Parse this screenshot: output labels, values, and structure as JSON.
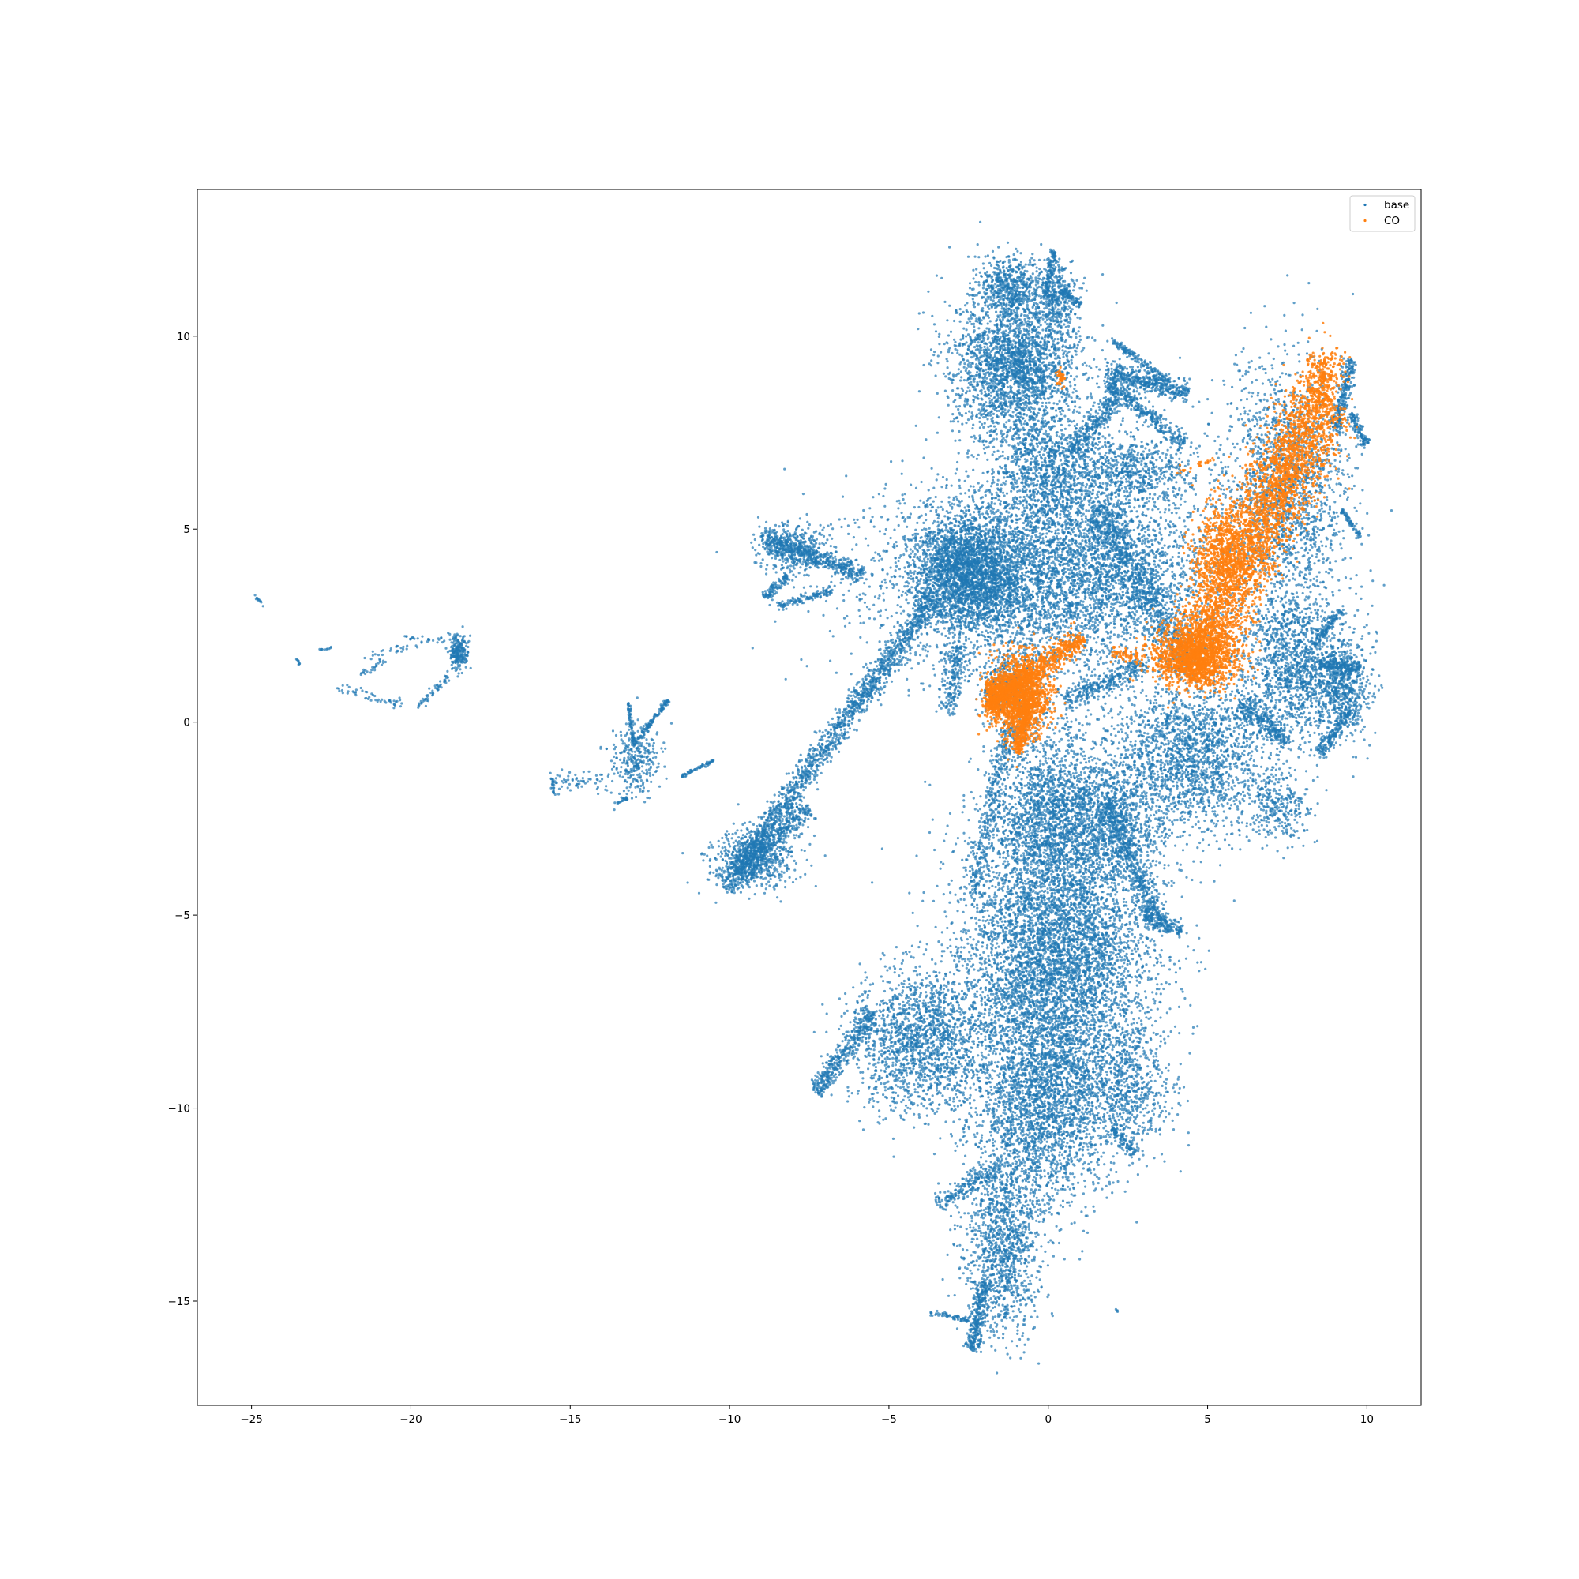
{
  "chart_data": {
    "type": "scatter",
    "title": "",
    "xlabel": "",
    "ylabel": "",
    "xlim": [
      -26.7,
      11.7
    ],
    "ylim": [
      -17.7,
      13.8
    ],
    "xticks": [
      -25,
      -20,
      -15,
      -10,
      -5,
      0,
      5,
      10
    ],
    "yticks": [
      -15,
      -10,
      -5,
      0,
      5,
      10
    ],
    "xtick_labels": [
      "−25",
      "−20",
      "−15",
      "−10",
      "−5",
      "0",
      "5",
      "10"
    ],
    "ytick_labels": [
      "−15",
      "−10",
      "−5",
      "0",
      "5",
      "10"
    ],
    "grid": false,
    "legend_position": "upper right",
    "series": [
      {
        "name": "base",
        "color": "#1f77b4",
        "clusters": [
          {
            "type": "blob",
            "cx": 0.2,
            "cy": 3.8,
            "sx": 3.5,
            "sy": 1.7,
            "n": 5200
          },
          {
            "type": "blob",
            "cx": -2.5,
            "cy": 3.9,
            "sx": 1.1,
            "sy": 1.0,
            "n": 2400
          },
          {
            "type": "blob",
            "cx": -1.0,
            "cy": 9.2,
            "sx": 1.3,
            "sy": 1.3,
            "n": 2600
          },
          {
            "type": "blob",
            "cx": -1.2,
            "cy": 11.3,
            "sx": 0.7,
            "sy": 0.5,
            "n": 500
          },
          {
            "type": "blob",
            "cx": 0.3,
            "cy": 11.0,
            "sx": 0.4,
            "sy": 0.6,
            "n": 300
          },
          {
            "type": "blob",
            "cx": 0.0,
            "cy": 6.5,
            "sx": 1.1,
            "sy": 1.0,
            "n": 900
          },
          {
            "type": "blob",
            "cx": 7.5,
            "cy": 6.0,
            "sx": 1.3,
            "sy": 2.2,
            "n": 1800
          },
          {
            "type": "blob",
            "cx": 7.8,
            "cy": 1.5,
            "sx": 1.2,
            "sy": 1.2,
            "n": 1400
          },
          {
            "type": "blob",
            "cx": 4.5,
            "cy": -0.8,
            "sx": 1.6,
            "sy": 1.3,
            "n": 1900
          },
          {
            "type": "blob",
            "cx": 9.2,
            "cy": 0.8,
            "sx": 0.6,
            "sy": 0.8,
            "n": 500
          },
          {
            "type": "blob",
            "cx": 0.3,
            "cy": -6.2,
            "sx": 2.0,
            "sy": 2.4,
            "n": 5600
          },
          {
            "type": "blob",
            "cx": 0.0,
            "cy": -2.5,
            "sx": 1.2,
            "sy": 1.6,
            "n": 1700
          },
          {
            "type": "blob",
            "cx": 2.0,
            "cy": -2.5,
            "sx": 1.3,
            "sy": 1.2,
            "n": 1100
          },
          {
            "type": "blob",
            "cx": -0.2,
            "cy": -10.0,
            "sx": 1.4,
            "sy": 1.7,
            "n": 2200
          },
          {
            "type": "blob",
            "cx": -1.4,
            "cy": -13.6,
            "sx": 0.8,
            "sy": 1.6,
            "n": 1200
          },
          {
            "type": "blob",
            "cx": -4.0,
            "cy": -8.2,
            "sx": 1.4,
            "sy": 1.2,
            "n": 1700
          },
          {
            "type": "blob",
            "cx": 2.5,
            "cy": -9.5,
            "sx": 0.9,
            "sy": 1.0,
            "n": 600
          },
          {
            "type": "blob",
            "cx": -1.2,
            "cy": 0.9,
            "sx": 0.6,
            "sy": 0.6,
            "n": 400
          },
          {
            "type": "blob",
            "cx": 7.2,
            "cy": -2.2,
            "sx": 0.7,
            "sy": 0.6,
            "n": 300
          },
          {
            "type": "blob",
            "cx": 2.5,
            "cy": 6.5,
            "sx": 1.5,
            "sy": 0.6,
            "n": 700
          },
          {
            "type": "blob",
            "cx": -8.0,
            "cy": 4.5,
            "sx": 0.7,
            "sy": 0.4,
            "n": 350
          },
          {
            "type": "blob",
            "cx": -9.2,
            "cy": -3.6,
            "sx": 0.9,
            "sy": 0.5,
            "n": 600
          },
          {
            "type": "blob",
            "cx": -13.0,
            "cy": -1.0,
            "sx": 0.5,
            "sy": 0.6,
            "n": 300
          },
          {
            "type": "blob",
            "cx": -18.5,
            "cy": 1.8,
            "sx": 0.2,
            "sy": 0.3,
            "n": 220
          },
          {
            "type": "line",
            "x1": -3.5,
            "y1": 3.3,
            "x2": -9.8,
            "y2": -3.8,
            "w": 0.35,
            "n": 1500
          },
          {
            "type": "line",
            "x1": -10.2,
            "y1": -4.3,
            "x2": -7.5,
            "y2": -2.2,
            "w": 0.35,
            "n": 500
          },
          {
            "type": "line",
            "x1": -5.8,
            "y1": 3.8,
            "x2": -9.0,
            "y2": 4.8,
            "w": 0.3,
            "n": 500
          },
          {
            "type": "line",
            "x1": -6.8,
            "y1": 3.4,
            "x2": -8.5,
            "y2": 3.0,
            "w": 0.12,
            "n": 120
          },
          {
            "type": "line",
            "x1": -8.2,
            "y1": 3.8,
            "x2": -8.9,
            "y2": 3.2,
            "w": 0.15,
            "n": 100
          },
          {
            "type": "line",
            "x1": 0.8,
            "y1": 7.0,
            "x2": 2.2,
            "y2": 8.5,
            "w": 0.3,
            "n": 300
          },
          {
            "type": "line",
            "x1": 1.8,
            "y1": 9.1,
            "x2": 4.4,
            "y2": 8.5,
            "w": 0.28,
            "n": 450
          },
          {
            "type": "line",
            "x1": 1.9,
            "y1": 8.8,
            "x2": 4.3,
            "y2": 7.2,
            "w": 0.22,
            "n": 350
          },
          {
            "type": "line",
            "x1": 2.0,
            "y1": 9.9,
            "x2": 3.8,
            "y2": 8.8,
            "w": 0.12,
            "n": 150
          },
          {
            "type": "line",
            "x1": -0.1,
            "y1": 11.0,
            "x2": 0.2,
            "y2": 12.2,
            "w": 0.1,
            "n": 120
          },
          {
            "type": "line",
            "x1": 0.4,
            "y1": 11.2,
            "x2": 1.0,
            "y2": 10.8,
            "w": 0.1,
            "n": 80
          },
          {
            "type": "line",
            "x1": -1.5,
            "y1": -11.5,
            "x2": -3.5,
            "y2": -12.5,
            "w": 0.25,
            "n": 200
          },
          {
            "type": "line",
            "x1": -2.0,
            "y1": -14.5,
            "x2": -2.4,
            "y2": -16.3,
            "w": 0.25,
            "n": 300
          },
          {
            "type": "line",
            "x1": -2.5,
            "y1": -15.5,
            "x2": -3.7,
            "y2": -15.3,
            "w": 0.08,
            "n": 60
          },
          {
            "type": "line",
            "x1": -5.5,
            "y1": -7.5,
            "x2": -7.3,
            "y2": -9.6,
            "w": 0.3,
            "n": 400
          },
          {
            "type": "line",
            "x1": -1.2,
            "y1": 0.0,
            "x2": -2.4,
            "y2": -4.5,
            "w": 0.3,
            "n": 350
          },
          {
            "type": "line",
            "x1": 3.0,
            "y1": -5.0,
            "x2": 4.2,
            "y2": -5.4,
            "w": 0.2,
            "n": 150
          },
          {
            "type": "line",
            "x1": 8.5,
            "y1": 1.5,
            "x2": 9.8,
            "y2": 1.4,
            "w": 0.2,
            "n": 200
          },
          {
            "type": "line",
            "x1": 8.3,
            "y1": 2.0,
            "x2": 9.2,
            "y2": 2.9,
            "w": 0.12,
            "n": 100
          },
          {
            "type": "line",
            "x1": 9.0,
            "y1": 7.5,
            "x2": 9.5,
            "y2": 9.4,
            "w": 0.2,
            "n": 250
          },
          {
            "type": "line",
            "x1": 9.5,
            "y1": 8.0,
            "x2": 10.0,
            "y2": 7.2,
            "w": 0.15,
            "n": 120
          },
          {
            "type": "line",
            "x1": 9.2,
            "y1": 5.5,
            "x2": 9.8,
            "y2": 4.8,
            "w": 0.08,
            "n": 60
          },
          {
            "type": "line",
            "x1": 8.5,
            "y1": -0.8,
            "x2": 9.5,
            "y2": 0.3,
            "w": 0.2,
            "n": 200
          },
          {
            "type": "line",
            "x1": 6.0,
            "y1": 0.5,
            "x2": 7.5,
            "y2": -0.5,
            "w": 0.3,
            "n": 300
          },
          {
            "type": "line",
            "x1": 0.5,
            "y1": 0.5,
            "x2": 3.0,
            "y2": 1.5,
            "w": 0.3,
            "n": 300
          },
          {
            "type": "line",
            "x1": 1.5,
            "y1": 5.5,
            "x2": 4.5,
            "y2": 1.5,
            "w": 0.6,
            "n": 900
          },
          {
            "type": "line",
            "x1": -2.8,
            "y1": 2.0,
            "x2": -3.2,
            "y2": 0.2,
            "w": 0.3,
            "n": 200
          },
          {
            "type": "line",
            "x1": 1.8,
            "y1": -2.0,
            "x2": 3.5,
            "y2": -5.3,
            "w": 0.35,
            "n": 500
          },
          {
            "type": "line",
            "x1": 2.0,
            "y1": -10.5,
            "x2": 2.7,
            "y2": -11.2,
            "w": 0.2,
            "n": 100
          },
          {
            "type": "line",
            "x1": -13.0,
            "y1": -0.6,
            "x2": -11.9,
            "y2": 0.6,
            "w": 0.08,
            "n": 120
          },
          {
            "type": "line",
            "x1": -13.0,
            "y1": -0.6,
            "x2": -13.2,
            "y2": 0.6,
            "w": 0.06,
            "n": 70
          },
          {
            "type": "line",
            "x1": -11.5,
            "y1": -1.4,
            "x2": -10.5,
            "y2": -1.0,
            "w": 0.05,
            "n": 60
          },
          {
            "type": "line",
            "x1": -13.8,
            "y1": -1.6,
            "x2": -15.5,
            "y2": -1.5,
            "w": 0.3,
            "n": 60
          },
          {
            "type": "line",
            "x1": -15.6,
            "y1": -1.3,
            "x2": -15.5,
            "y2": -1.9,
            "w": 0.05,
            "n": 25
          },
          {
            "type": "line",
            "x1": -13.2,
            "y1": -2.0,
            "x2": -13.6,
            "y2": -2.1,
            "w": 0.08,
            "n": 20
          },
          {
            "type": "line",
            "x1": -18.8,
            "y1": 1.2,
            "x2": -19.8,
            "y2": 0.4,
            "w": 0.12,
            "n": 50
          },
          {
            "type": "line",
            "x1": -20.2,
            "y1": 0.4,
            "x2": -22.3,
            "y2": 0.9,
            "w": 0.12,
            "n": 50
          },
          {
            "type": "line",
            "x1": -20.8,
            "y1": 1.6,
            "x2": -21.6,
            "y2": 1.2,
            "w": 0.1,
            "n": 25
          },
          {
            "type": "line",
            "x1": -19.8,
            "y1": 2.0,
            "x2": -21.5,
            "y2": 1.7,
            "w": 0.1,
            "n": 25
          },
          {
            "type": "line",
            "x1": -18.9,
            "y1": 2.1,
            "x2": -20.2,
            "y2": 2.2,
            "w": 0.08,
            "n": 25
          },
          {
            "type": "line",
            "x1": -22.5,
            "y1": 1.9,
            "x2": -22.9,
            "y2": 1.9,
            "w": 0.04,
            "n": 10
          },
          {
            "type": "line",
            "x1": -24.9,
            "y1": 3.3,
            "x2": -24.6,
            "y2": 3.0,
            "w": 0.04,
            "n": 12
          },
          {
            "type": "line",
            "x1": -23.6,
            "y1": 1.7,
            "x2": -23.5,
            "y2": 1.5,
            "w": 0.03,
            "n": 8
          },
          {
            "type": "line",
            "x1": 2.1,
            "y1": -15.2,
            "x2": 2.2,
            "y2": -15.3,
            "w": 0.02,
            "n": 4
          }
        ]
      },
      {
        "name": "CO",
        "color": "#ff7f0e",
        "clusters": [
          {
            "type": "line",
            "x1": 4.3,
            "y1": 1.2,
            "x2": 8.7,
            "y2": 8.5,
            "w": 1.0,
            "n": 3500
          },
          {
            "type": "blob",
            "cx": 4.6,
            "cy": 1.7,
            "sx": 0.9,
            "sy": 0.5,
            "n": 1300
          },
          {
            "type": "blob",
            "cx": 8.6,
            "cy": 9.0,
            "sx": 0.4,
            "sy": 0.5,
            "n": 250
          },
          {
            "type": "blob",
            "cx": 5.4,
            "cy": 4.5,
            "sx": 0.6,
            "sy": 0.8,
            "n": 500
          },
          {
            "type": "blob",
            "cx": -0.9,
            "cy": 0.7,
            "sx": 0.6,
            "sy": 0.7,
            "n": 1500
          },
          {
            "type": "line",
            "x1": -1.5,
            "y1": 0.7,
            "x2": 1.1,
            "y2": 2.2,
            "w": 0.3,
            "n": 500
          },
          {
            "type": "line",
            "x1": -1.0,
            "y1": -0.8,
            "x2": -0.6,
            "y2": 0.5,
            "w": 0.2,
            "n": 300
          },
          {
            "type": "blob",
            "cx": -1.7,
            "cy": 0.6,
            "sx": 0.2,
            "sy": 0.3,
            "n": 350
          },
          {
            "type": "blob",
            "cx": 0.4,
            "cy": 8.9,
            "sx": 0.08,
            "sy": 0.15,
            "n": 40
          },
          {
            "type": "line",
            "x1": 2.0,
            "y1": 1.8,
            "x2": 2.8,
            "y2": 1.7,
            "w": 0.2,
            "n": 60
          },
          {
            "type": "line",
            "x1": 4.0,
            "y1": 6.5,
            "x2": 5.2,
            "y2": 6.8,
            "w": 0.08,
            "n": 25
          }
        ]
      }
    ]
  }
}
